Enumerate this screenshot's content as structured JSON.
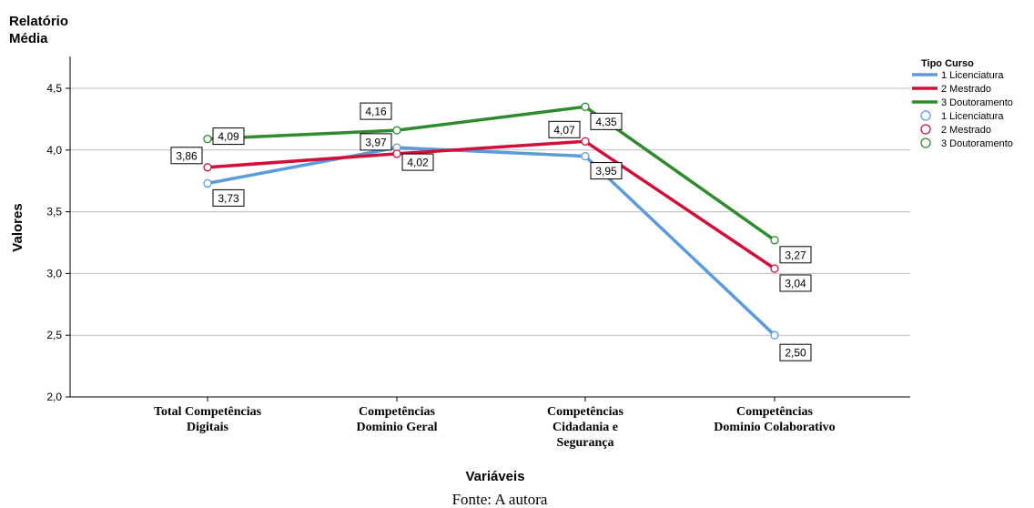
{
  "chart_data": {
    "type": "line",
    "title": "Relatório",
    "subtitle": "Média",
    "xlabel": "Variáveis",
    "ylabel": "Valores",
    "ylim": [
      2.0,
      4.7
    ],
    "yticks": [
      "2,0",
      "2,5",
      "3,0",
      "3,5",
      "4,0",
      "4,5"
    ],
    "ytick_values": [
      2.0,
      2.5,
      3.0,
      3.5,
      4.0,
      4.5
    ],
    "grid": true,
    "categories": [
      [
        "Total Competências",
        "Digitais"
      ],
      [
        "Competências",
        "Dominio Geral"
      ],
      [
        "Competências",
        "Cidadania e",
        "Segurança"
      ],
      [
        "Competências",
        "Dominio Colaborativo"
      ]
    ],
    "series": [
      {
        "name": "1 Licenciatura",
        "color": "#5b9bdb",
        "values": [
          3.73,
          4.02,
          3.95,
          2.5
        ],
        "labels": [
          "3,73",
          "4,02",
          "3,95",
          "2,50"
        ]
      },
      {
        "name": "2 Mestrado",
        "color": "#d0103a",
        "values": [
          3.86,
          3.97,
          4.07,
          3.04
        ],
        "labels": [
          "3,86",
          "3,97",
          "4,07",
          "3,04"
        ]
      },
      {
        "name": "3 Doutoramento",
        "color": "#2e8b2e",
        "values": [
          4.09,
          4.16,
          4.35,
          3.27
        ],
        "labels": [
          "4,09",
          "4,16",
          "4,35",
          "3,27"
        ]
      }
    ],
    "legend": {
      "title": "Tipo Curso",
      "position": "right",
      "line_entries": [
        "1 Licenciatura",
        "2 Mestrado",
        "3 Doutoramento"
      ],
      "marker_entries": [
        "1 Licenciatura",
        "2 Mestrado",
        "3 Doutoramento"
      ]
    }
  },
  "caption": "Fonte: A autora"
}
